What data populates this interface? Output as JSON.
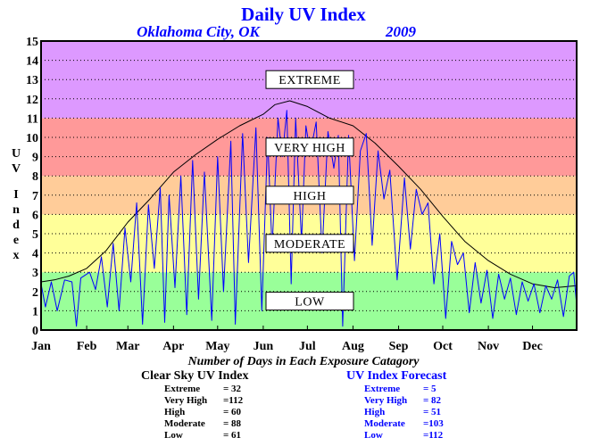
{
  "chart_data": {
    "type": "line",
    "title": "Daily UV Index",
    "subtitle_location": "Oklahoma City, OK",
    "subtitle_year": "2009",
    "ylabel": "UV Index",
    "ylim": [
      0,
      15
    ],
    "yticks": [
      "0",
      "1",
      "2",
      "3",
      "4",
      "5",
      "6",
      "7",
      "8",
      "9",
      "10",
      "11",
      "12",
      "13",
      "14",
      "15"
    ],
    "xlim": [
      1,
      365
    ],
    "x_tick_labels": [
      "Jan",
      "Feb",
      "Mar",
      "Apr",
      "May",
      "Jun",
      "Jul",
      "Aug",
      "Sep",
      "Oct",
      "Nov",
      "Dec"
    ],
    "x_tick_days": [
      1,
      32,
      60,
      91,
      121,
      152,
      182,
      213,
      244,
      274,
      305,
      335
    ],
    "grid": "horizontal-dotted",
    "bands": [
      {
        "label": "LOW",
        "from": 0,
        "to": 3,
        "color": "#99ff99"
      },
      {
        "label": "MODERATE",
        "from": 3,
        "to": 6,
        "color": "#ffff99"
      },
      {
        "label": "HIGH",
        "from": 6,
        "to": 8,
        "color": "#ffcc99"
      },
      {
        "label": "VERY HIGH",
        "from": 8,
        "to": 11,
        "color": "#ff9999"
      },
      {
        "label": "EXTREME",
        "from": 11,
        "to": 15,
        "color": "#dd99ff"
      }
    ],
    "series": [
      {
        "name": "Clear Sky UV Index",
        "color": "#000000",
        "points": [
          [
            1,
            2.5
          ],
          [
            10,
            2.6
          ],
          [
            20,
            2.8
          ],
          [
            32,
            3.2
          ],
          [
            45,
            4.1
          ],
          [
            60,
            5.6
          ],
          [
            75,
            6.8
          ],
          [
            91,
            8.2
          ],
          [
            106,
            9.1
          ],
          [
            121,
            9.9
          ],
          [
            136,
            10.6
          ],
          [
            152,
            11.2
          ],
          [
            160,
            11.7
          ],
          [
            170,
            11.9
          ],
          [
            182,
            11.6
          ],
          [
            197,
            11.0
          ],
          [
            213,
            10.6
          ],
          [
            228,
            9.7
          ],
          [
            244,
            8.5
          ],
          [
            259,
            7.3
          ],
          [
            274,
            5.9
          ],
          [
            289,
            4.6
          ],
          [
            305,
            3.6
          ],
          [
            320,
            2.9
          ],
          [
            335,
            2.4
          ],
          [
            350,
            2.2
          ],
          [
            365,
            2.3
          ]
        ]
      },
      {
        "name": "UV Index Forecast",
        "color": "#0000ff",
        "points": [
          [
            1,
            2.4
          ],
          [
            4,
            1.2
          ],
          [
            8,
            2.5
          ],
          [
            12,
            1.0
          ],
          [
            17,
            2.6
          ],
          [
            22,
            2.5
          ],
          [
            25,
            0.2
          ],
          [
            28,
            2.7
          ],
          [
            34,
            3.0
          ],
          [
            38,
            2.1
          ],
          [
            42,
            3.8
          ],
          [
            46,
            1.2
          ],
          [
            50,
            4.5
          ],
          [
            54,
            1.0
          ],
          [
            58,
            5.3
          ],
          [
            62,
            2.5
          ],
          [
            66,
            6.6
          ],
          [
            70,
            0.3
          ],
          [
            74,
            6.5
          ],
          [
            78,
            3.2
          ],
          [
            82,
            7.4
          ],
          [
            85,
            0.4
          ],
          [
            88,
            7.0
          ],
          [
            92,
            2.2
          ],
          [
            96,
            8.0
          ],
          [
            100,
            0.8
          ],
          [
            104,
            8.8
          ],
          [
            108,
            1.6
          ],
          [
            112,
            8.2
          ],
          [
            117,
            0.5
          ],
          [
            121,
            9.0
          ],
          [
            125,
            2.0
          ],
          [
            130,
            9.8
          ],
          [
            133,
            0.3
          ],
          [
            138,
            10.2
          ],
          [
            142,
            3.5
          ],
          [
            147,
            10.5
          ],
          [
            151,
            1.0
          ],
          [
            155,
            10.0
          ],
          [
            158,
            4.2
          ],
          [
            162,
            11.0
          ],
          [
            165,
            9.0
          ],
          [
            168,
            11.4
          ],
          [
            171,
            2.4
          ],
          [
            174,
            11.0
          ],
          [
            178,
            4.6
          ],
          [
            181,
            10.6
          ],
          [
            184,
            9.2
          ],
          [
            188,
            10.8
          ],
          [
            192,
            4.0
          ],
          [
            196,
            10.3
          ],
          [
            200,
            8.4
          ],
          [
            203,
            10.1
          ],
          [
            206,
            0.2
          ],
          [
            210,
            10.1
          ],
          [
            214,
            3.6
          ],
          [
            218,
            9.3
          ],
          [
            222,
            10.2
          ],
          [
            226,
            4.4
          ],
          [
            230,
            9.3
          ],
          [
            234,
            6.8
          ],
          [
            238,
            8.3
          ],
          [
            243,
            2.6
          ],
          [
            248,
            7.9
          ],
          [
            252,
            4.2
          ],
          [
            256,
            7.3
          ],
          [
            260,
            6.0
          ],
          [
            264,
            6.6
          ],
          [
            268,
            2.4
          ],
          [
            272,
            5.0
          ],
          [
            276,
            0.6
          ],
          [
            280,
            4.6
          ],
          [
            284,
            3.4
          ],
          [
            288,
            4.0
          ],
          [
            292,
            0.9
          ],
          [
            296,
            3.5
          ],
          [
            300,
            1.4
          ],
          [
            304,
            3.1
          ],
          [
            308,
            0.6
          ],
          [
            312,
            2.9
          ],
          [
            316,
            1.6
          ],
          [
            320,
            2.7
          ],
          [
            324,
            0.8
          ],
          [
            328,
            2.5
          ],
          [
            332,
            1.5
          ],
          [
            336,
            2.4
          ],
          [
            340,
            0.9
          ],
          [
            344,
            2.3
          ],
          [
            348,
            1.6
          ],
          [
            352,
            2.6
          ],
          [
            356,
            0.7
          ],
          [
            360,
            2.8
          ],
          [
            363,
            3.0
          ],
          [
            365,
            1.3
          ]
        ]
      }
    ]
  },
  "stats_caption": "Number of Days in Each Exposure Catagory",
  "clear_sky_stats": {
    "title": "Clear Sky UV Index",
    "rows": [
      {
        "label": "Extreme",
        "value": "= 32"
      },
      {
        "label": "Very High",
        "value": "=112"
      },
      {
        "label": "High",
        "value": "= 60"
      },
      {
        "label": "Moderate",
        "value": "= 88"
      },
      {
        "label": "Low",
        "value": "= 61"
      }
    ]
  },
  "forecast_stats": {
    "title": "UV Index Forecast",
    "rows": [
      {
        "label": "Extreme",
        "value": "= 5"
      },
      {
        "label": "Very High",
        "value": "= 82"
      },
      {
        "label": "High",
        "value": "= 51"
      },
      {
        "label": "Moderate",
        "value": "=103"
      },
      {
        "label": "Low",
        "value": "=112"
      }
    ]
  }
}
